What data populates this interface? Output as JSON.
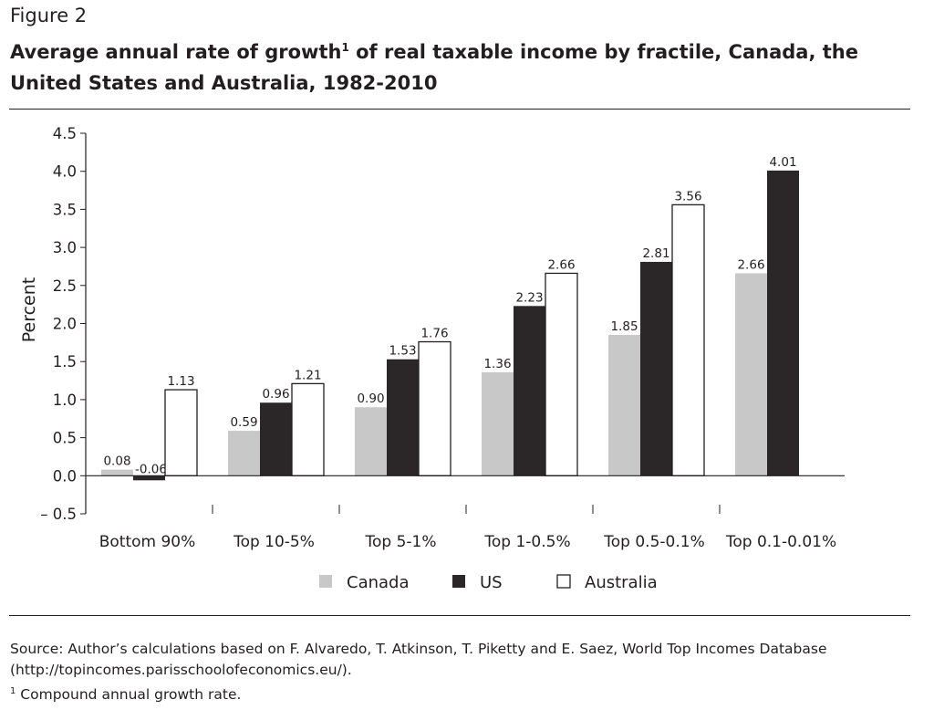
{
  "figure_label": "Figure 2",
  "title_part1": "Average annual rate of growth",
  "title_sup": "1",
  "title_part2": " of real taxable income by fractile, Canada, the United States and Australia, 1982-2010",
  "source_line1": "Source: Author’s calculations based on F. Alvaredo, T. Atkinson, T. Piketty and E. Saez, World Top Incomes Database",
  "source_line2": "(http://topincomes.parisschoolofeconomics.eu/).",
  "footnote_sup": "1",
  "footnote_text": " Compound annual growth rate.",
  "chart_data": {
    "type": "bar",
    "title": "Average annual rate of growth of real taxable income by fractile, Canada, the United States and Australia, 1982-2010",
    "xlabel": "",
    "ylabel": "Percent",
    "ylim": [
      -0.5,
      4.5
    ],
    "yticks": [
      4.5,
      4.0,
      3.5,
      3.0,
      2.5,
      2.0,
      1.5,
      1.0,
      0.5,
      0.0,
      -0.5
    ],
    "ytick_labels": [
      "4.5",
      "4.0",
      "3.5",
      "3.0",
      "2.5",
      "2.0",
      "1.5",
      "1.0",
      "0.5",
      "0.0",
      "– 0.5"
    ],
    "categories": [
      "Bottom 90%",
      "Top 10-5%",
      "Top 5-1%",
      "Top 1-0.5%",
      "Top 0.5-0.1%",
      "Top 0.1-0.01%"
    ],
    "series": [
      {
        "name": "Canada",
        "color": "#c8c8c8",
        "values": [
          0.08,
          0.59,
          0.9,
          1.36,
          1.85,
          2.66
        ],
        "labels": [
          "0.08",
          "0.59",
          "0.90",
          "1.36",
          "1.85",
          "2.66"
        ]
      },
      {
        "name": "US",
        "color": "#2b2627",
        "values": [
          -0.06,
          0.96,
          1.53,
          2.23,
          2.81,
          4.01
        ],
        "labels": [
          "-0.06",
          "0.96",
          "1.53",
          "2.23",
          "2.81",
          "4.01"
        ]
      },
      {
        "name": "Australia",
        "color": "#ffffff",
        "values": [
          1.13,
          1.21,
          1.76,
          2.66,
          3.56,
          null
        ],
        "labels": [
          "1.13",
          "1.21",
          "1.76",
          "2.66",
          "3.56",
          null
        ]
      }
    ],
    "legend_position": "bottom-center",
    "grid": false
  }
}
